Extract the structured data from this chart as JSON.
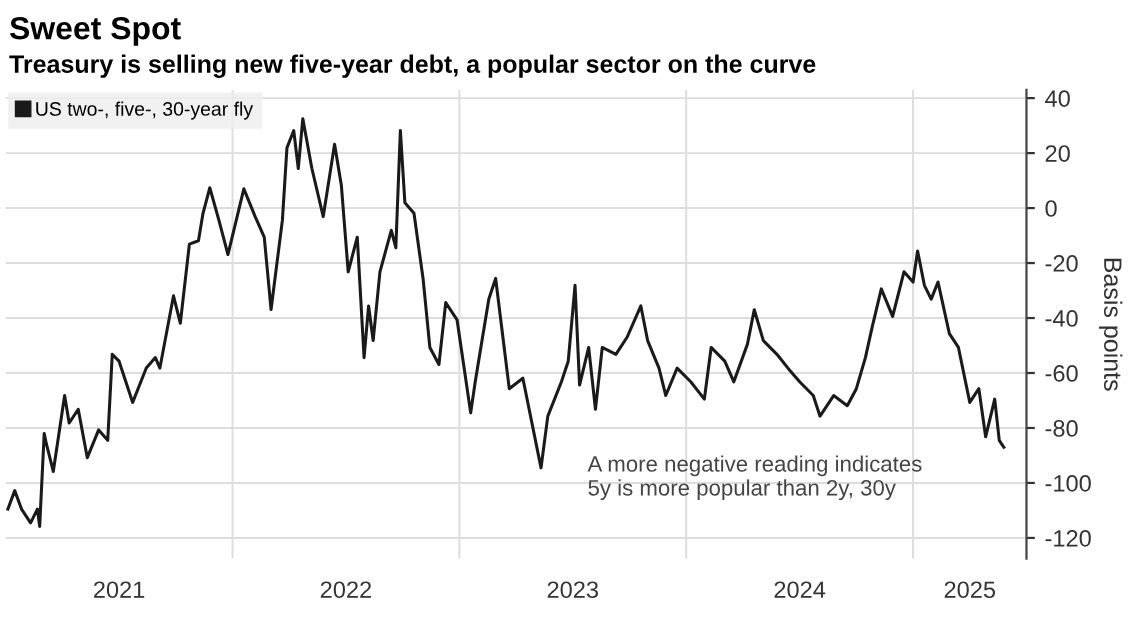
{
  "chart_data": {
    "type": "line",
    "title": "Sweet Spot",
    "subtitle": "Treasury is selling new five-year debt, a popular sector on the curve",
    "ylabel": "Basis points",
    "annotations": [
      "A more negative reading indicates\n5y is more popular than 2y, 30y"
    ],
    "series": [
      {
        "name": "US two-, five-, 30-year fly",
        "color": "#1a1a1a",
        "x": [
          2021.01,
          2021.04,
          2021.07,
          2021.11,
          2021.14,
          2021.15,
          2021.17,
          2021.18,
          2021.21,
          2021.26,
          2021.28,
          2021.32,
          2021.36,
          2021.41,
          2021.45,
          2021.47,
          2021.5,
          2021.56,
          2021.62,
          2021.66,
          2021.68,
          2021.74,
          2021.77,
          2021.81,
          2021.85,
          2021.87,
          2021.9,
          2021.94,
          2021.98,
          2022.05,
          2022.1,
          2022.14,
          2022.17,
          2022.22,
          2022.24,
          2022.27,
          2022.29,
          2022.31,
          2022.35,
          2022.4,
          2022.45,
          2022.48,
          2022.51,
          2022.55,
          2022.58,
          2022.6,
          2022.62,
          2022.65,
          2022.7,
          2022.72,
          2022.74,
          2022.76,
          2022.8,
          2022.84,
          2022.87,
          2022.91,
          2022.94,
          2022.99,
          2023.05,
          2023.07,
          2023.13,
          2023.16,
          2023.22,
          2023.28,
          2023.36,
          2023.39,
          2023.45,
          2023.48,
          2023.51,
          2023.53,
          2023.57,
          2023.6,
          2023.63,
          2023.69,
          2023.74,
          2023.8,
          2023.83,
          2023.88,
          2023.91,
          2023.96,
          2024.02,
          2024.08,
          2024.11,
          2024.17,
          2024.21,
          2024.27,
          2024.3,
          2024.34,
          2024.4,
          2024.46,
          2024.5,
          2024.56,
          2024.59,
          2024.65,
          2024.71,
          2024.75,
          2024.79,
          2024.82,
          2024.86,
          2024.91,
          2024.96,
          2025.0,
          2025.02,
          2025.05,
          2025.08,
          2025.11,
          2025.16,
          2025.2,
          2025.25,
          2025.29,
          2025.32,
          2025.36,
          2025.38,
          2025.4
        ],
        "values": [
          -109.5,
          -102.8,
          -109.5,
          -114.5,
          -109.5,
          -115.8,
          -82,
          -85.9,
          -95.8,
          -68.2,
          -78.2,
          -73.2,
          -90.8,
          -80.7,
          -84.5,
          -53.2,
          -55.7,
          -70.7,
          -58.2,
          -54.4,
          -58.2,
          -31.9,
          -41.9,
          -13.1,
          -11.9,
          -1.9,
          7.4,
          -4.4,
          -16.9,
          7.0,
          -3.1,
          -10.6,
          -36.9,
          -4.4,
          21.9,
          28.2,
          14.4,
          32.5,
          14.4,
          -3.1,
          23.2,
          8.2,
          -23.2,
          -10.6,
          -54.4,
          -35.6,
          -48.2,
          -23.2,
          -8.1,
          -14.4,
          28.2,
          1.9,
          -1.9,
          -25.6,
          -50.7,
          -56.9,
          -34.4,
          -40.7,
          -74.5,
          -63.2,
          -33.1,
          -25.6,
          -65.7,
          -61.9,
          -94.5,
          -75.7,
          -63.2,
          -55.7,
          -28.1,
          -64.4,
          -50.7,
          -73.2,
          -50.7,
          -53.2,
          -46.9,
          -35.6,
          -48.2,
          -58.2,
          -68.2,
          -58.2,
          -63.2,
          -69.5,
          -50.7,
          -55.7,
          -63.2,
          -49.5,
          -37,
          -48.2,
          -53.2,
          -59.4,
          -63.2,
          -68.2,
          -75.7,
          -68.2,
          -71.9,
          -65.7,
          -54.4,
          -43.2,
          -29.4,
          -39.4,
          -23.2,
          -26.9,
          -15.6,
          -28.1,
          -33.1,
          -26.9,
          -45.7,
          -50.7,
          -70.7,
          -65.7,
          -83.2,
          -69.5,
          -84.5,
          -87
        ]
      }
    ],
    "xlim": [
      2021.0,
      2025.5
    ],
    "xticks": [
      {
        "value": 2021.5,
        "label": "2021"
      },
      {
        "value": 2022.0,
        "label": null
      },
      {
        "value": 2022.5,
        "label": "2022"
      },
      {
        "value": 2023.0,
        "label": null
      },
      {
        "value": 2023.5,
        "label": "2023"
      },
      {
        "value": 2024.0,
        "label": null
      },
      {
        "value": 2024.5,
        "label": "2024"
      },
      {
        "value": 2025.0,
        "label": null
      },
      {
        "value": 2025.25,
        "label": "2025"
      }
    ],
    "ylim": [
      -127.5,
      43
    ],
    "yticks": [
      40,
      20,
      0,
      -20,
      -40,
      -60,
      -80,
      -100,
      -120
    ],
    "grid": true,
    "legend": "top left",
    "line_style": "solid",
    "marker": "none"
  }
}
